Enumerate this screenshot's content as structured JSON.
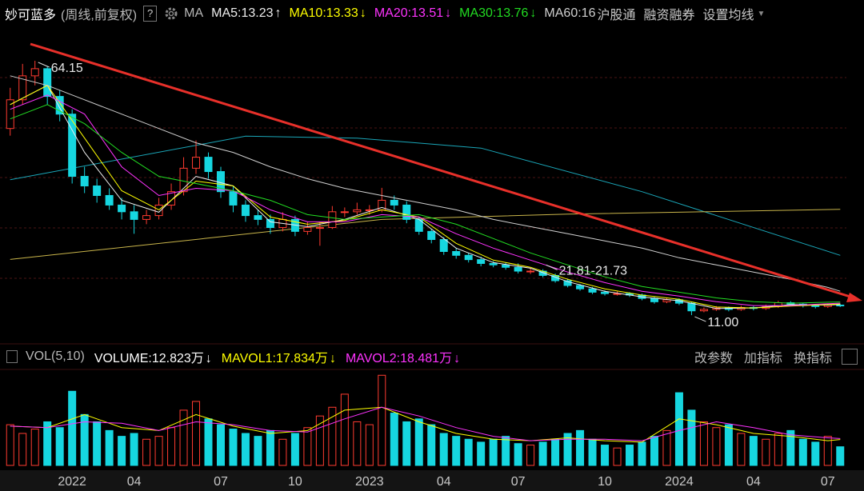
{
  "header": {
    "name": "妙可蓝多",
    "mode": "(周线,前复权)",
    "help": "?",
    "ma_label": "MA",
    "separator": ":",
    "links": [
      "沪股通",
      "融资融券",
      "设置均线"
    ]
  },
  "chart_data": [
    {
      "type": "candlestick",
      "open": [
        50,
        56,
        61,
        62.5,
        56.7,
        53,
        40,
        38,
        36,
        34,
        32.6,
        31,
        31.8,
        34,
        36.8,
        41.7,
        44,
        41,
        36.8,
        34,
        31.8,
        31,
        29.3,
        31,
        28.5,
        29.3,
        29.3,
        32.6,
        32.6,
        33,
        33,
        35,
        34,
        31,
        28.5,
        26.8,
        24.3,
        23.5,
        22.6,
        21.8,
        21.5,
        21,
        20.2,
        20.2,
        19.3,
        18.2,
        17.2,
        16.5,
        15.8,
        15.5,
        15.5,
        15.2,
        14.5,
        13.8,
        14.2,
        13.5,
        11.9,
        12.2,
        12.5,
        12.2,
        12.6,
        12.4,
        12.8,
        13.6,
        13.3,
        13,
        12.8,
        13.1
      ],
      "high": [
        58.5,
        63.5,
        64.15,
        63,
        58,
        54,
        42,
        39.5,
        37.5,
        35.5,
        34,
        33,
        35.5,
        38.5,
        44,
        47.5,
        45,
        42,
        38,
        35,
        33,
        32,
        32.5,
        31.8,
        30.5,
        30.5,
        33.8,
        33.5,
        34.5,
        34,
        37.6,
        36,
        34.8,
        31.5,
        29,
        27.3,
        25,
        24,
        23.2,
        22.3,
        22,
        21.81,
        20.8,
        20.6,
        19.7,
        18.6,
        17.5,
        16.9,
        16.2,
        16,
        15.8,
        15.5,
        14.8,
        14.6,
        14.5,
        13.8,
        12.6,
        12.9,
        12.8,
        13,
        12.9,
        13.2,
        14,
        13.9,
        13.6,
        13.3,
        13.4,
        13.3
      ],
      "low": [
        48.5,
        55,
        59,
        55,
        51.5,
        38.5,
        36.5,
        34.5,
        33,
        31,
        28,
        30,
        31,
        33,
        36,
        40.5,
        39.5,
        35.5,
        32.5,
        30.5,
        29.8,
        28,
        28.5,
        27.5,
        27.8,
        25.5,
        29,
        31.5,
        32,
        32,
        32.5,
        33,
        30.2,
        27.8,
        26,
        23.6,
        22.8,
        22,
        21.2,
        21,
        20.5,
        19.7,
        19.6,
        18.9,
        17.8,
        16.8,
        16.1,
        15.4,
        15.1,
        15.1,
        14.8,
        14.1,
        13.4,
        13.5,
        13.1,
        11,
        11.6,
        11.9,
        11.8,
        11.9,
        12,
        12.1,
        12.5,
        12.9,
        12.6,
        12.4,
        12.5,
        12.7
      ],
      "close": [
        56,
        61,
        62.5,
        56.7,
        53,
        40,
        38,
        36,
        34,
        32.6,
        31,
        31.8,
        34,
        36.8,
        41.7,
        44,
        41,
        36.8,
        34,
        31.8,
        31,
        29.3,
        31,
        28.5,
        29.3,
        29.3,
        32.6,
        32.6,
        33,
        33,
        35,
        34,
        31,
        28.5,
        26.8,
        24.3,
        23.5,
        22.6,
        21.8,
        21.5,
        21,
        20.2,
        20.2,
        19.3,
        18.2,
        17.2,
        16.5,
        15.8,
        15.5,
        15.5,
        15.2,
        14.5,
        13.8,
        14.2,
        13.5,
        11.9,
        12.2,
        12.5,
        12.2,
        12.6,
        12.4,
        12.8,
        13.6,
        13.3,
        13,
        12.8,
        13.1,
        13
      ],
      "up_color": "#ff3b30",
      "down_color": "#16d6e0",
      "ylim": [
        5,
        71
      ],
      "annotations": [
        {
          "x": 2,
          "value": 64.15,
          "label": "64.15"
        },
        {
          "x": 43,
          "value": 21.81,
          "label": "21.81-21.73"
        },
        {
          "x": 55,
          "value": 11,
          "label": "11.00"
        }
      ],
      "ma_x": [
        0,
        3,
        6,
        9,
        12,
        15,
        18,
        21,
        24,
        27,
        30,
        33,
        36,
        39,
        42,
        45,
        48,
        51,
        54,
        57,
        60,
        63,
        66,
        67
      ],
      "ma_lines": [
        {
          "name": "MA5",
          "color": "#eeeeee",
          "trend": "↑",
          "values": [
            55,
            59,
            45,
            35,
            32.5,
            40,
            38,
            30.5,
            29.5,
            31,
            33.5,
            31,
            25,
            22,
            20.8,
            18,
            16,
            14.8,
            14,
            12.4,
            12.5,
            13.2,
            13.1,
            13.23
          ]
        },
        {
          "name": "MA10",
          "color": "#ffff00",
          "trend": "↓",
          "values": [
            55,
            59,
            48,
            37,
            33,
            39,
            38,
            31.5,
            30,
            30.8,
            33,
            31.5,
            26,
            22.5,
            21,
            18.5,
            16.5,
            15.2,
            14.3,
            12.7,
            12.5,
            12.9,
            13.2,
            13.33
          ]
        },
        {
          "name": "MA20",
          "color": "#ff33ff",
          "trend": "↓",
          "values": [
            54,
            57,
            53,
            42,
            36,
            37.5,
            37,
            33,
            30.5,
            30.5,
            32,
            31.5,
            28,
            25,
            22.5,
            20,
            17.8,
            16,
            15,
            13.8,
            13,
            13,
            13.4,
            13.51
          ]
        },
        {
          "name": "MA30",
          "color": "#22dd22",
          "trend": "↓",
          "values": [
            52,
            55,
            51,
            45,
            40,
            38.5,
            37,
            35,
            32,
            31,
            31.5,
            32,
            30,
            27,
            24,
            21.5,
            19,
            17,
            15.8,
            14.6,
            13.8,
            13.5,
            13.7,
            13.76
          ]
        },
        {
          "name": "MA60",
          "color": "#cfcfcf",
          "values": [
            61,
            59,
            56,
            53,
            50,
            47,
            45,
            42,
            39.5,
            37.5,
            36,
            34.5,
            33,
            31,
            29.5,
            28,
            26.5,
            25,
            23,
            21.5,
            20,
            18.5,
            16.8,
            16
          ]
        }
      ],
      "long_lines": [
        {
          "color": "#1aa6b8",
          "x": [
            0,
            19,
            28,
            38,
            51,
            67
          ],
          "values": [
            39.3,
            48.4,
            48,
            45.9,
            36.8,
            23.5
          ]
        },
        {
          "color": "#c8b44a",
          "x": [
            0,
            30,
            45,
            67
          ],
          "values": [
            22.65,
            31,
            32.1,
            33.1
          ]
        }
      ]
    },
    {
      "type": "bar",
      "title": "VOL(5,10)",
      "name": "VOLUME",
      "unit": "万",
      "trend": "↓",
      "color": "#ffffff",
      "categories": [
        null,
        null,
        null,
        null,
        null,
        "2022",
        null,
        null,
        null,
        null,
        "04",
        null,
        null,
        null,
        null,
        null,
        null,
        "07",
        null,
        null,
        null,
        null,
        null,
        "10",
        null,
        null,
        null,
        null,
        null,
        "2023",
        null,
        null,
        null,
        null,
        null,
        "04",
        null,
        null,
        null,
        null,
        null,
        "07",
        null,
        null,
        null,
        null,
        null,
        null,
        "10",
        null,
        null,
        null,
        null,
        null,
        "2024",
        null,
        null,
        null,
        null,
        null,
        "04",
        null,
        null,
        null,
        null,
        null,
        "07",
        null
      ],
      "values": [
        28,
        22,
        25,
        30,
        26,
        51,
        35,
        30,
        24,
        20,
        22,
        18,
        20,
        26,
        38,
        44,
        32,
        28,
        25,
        22,
        20,
        24,
        18,
        22,
        26,
        34,
        40,
        49,
        30,
        28,
        62,
        36,
        30,
        32,
        28,
        22,
        20,
        18,
        16,
        18,
        20,
        15,
        14,
        16,
        18,
        22,
        24,
        18,
        14,
        12,
        14,
        16,
        20,
        24,
        50,
        38,
        30,
        26,
        28,
        22,
        20,
        18,
        22,
        24,
        18,
        16,
        20,
        12.823
      ],
      "ylim": [
        0,
        66
      ],
      "ma_lines": [
        {
          "name": "MAVOL1",
          "color": "#ffff00",
          "trend": "↓",
          "values": [
            27,
            26,
            35,
            26,
            24,
            35,
            27,
            22,
            24,
            38,
            40,
            30,
            22,
            18,
            17,
            19,
            17,
            16,
            32,
            28,
            22,
            20,
            17,
            17.834
          ]
        },
        {
          "name": "MAVOL2",
          "color": "#ff33ff",
          "trend": "↓",
          "values": [
            27,
            26,
            30,
            29,
            24,
            30,
            28,
            24,
            23,
            32,
            40,
            34,
            26,
            20,
            17,
            18,
            18,
            17,
            24,
            30,
            26,
            21,
            19,
            18.481
          ]
        }
      ],
      "tools": [
        "改参数",
        "加指标",
        "换指标"
      ]
    }
  ]
}
